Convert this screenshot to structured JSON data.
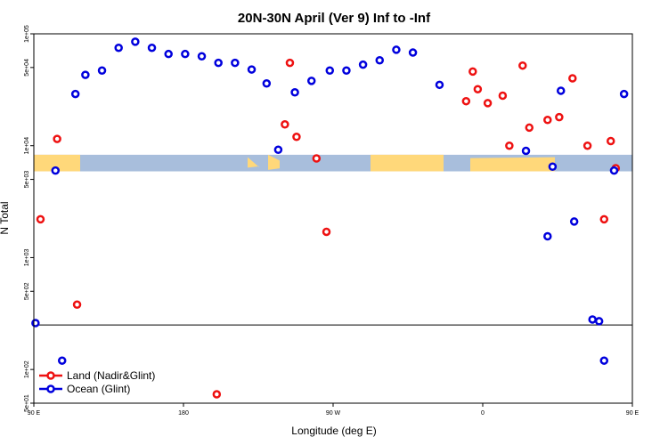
{
  "chart_data": {
    "type": "scatter",
    "title": "20N-30N April (Ver 9)   Inf to -Inf",
    "xlabel": "Longitude (deg E)",
    "ylabel": "N Total",
    "x_range_deg": [
      90,
      450
    ],
    "y_scale": "log",
    "ylim": [
      50,
      100000
    ],
    "x_ticks": [
      {
        "value": 90,
        "label": "90 E"
      },
      {
        "value": 180,
        "label": "180"
      },
      {
        "value": 270,
        "label": "90 W"
      },
      {
        "value": 360,
        "label": "0"
      },
      {
        "value": 450,
        "label": "90 E"
      },
      {
        "value": 540,
        "label": "180"
      }
    ],
    "y_ticks": [
      {
        "value": 50,
        "label": "5e+01"
      },
      {
        "value": 100,
        "label": "1e+02"
      },
      {
        "value": 500,
        "label": "5e+02"
      },
      {
        "value": 1000,
        "label": "1e+03"
      },
      {
        "value": 5000,
        "label": "5e+03"
      },
      {
        "value": 10000,
        "label": "1e+04"
      },
      {
        "value": 50000,
        "label": "5e+04"
      },
      {
        "value": 100000,
        "label": "1e+05"
      }
    ],
    "reference_line_y": 250,
    "map_band": {
      "y_top": 8300,
      "y_bottom": 5900,
      "land_color": "#FFD87A",
      "ocean_color": "#A8BEDC"
    },
    "legend_position": "bottom-left",
    "series": [
      {
        "name": "Land (Nadir&Glint)",
        "color": "#EE1111",
        "points": [
          [
            94,
            2200
          ],
          [
            104,
            11500
          ],
          [
            116,
            380
          ],
          [
            200,
            60
          ],
          [
            241,
            15500
          ],
          [
            244,
            55000
          ],
          [
            248,
            12000
          ],
          [
            260,
            7700
          ],
          [
            266,
            1700
          ],
          [
            357,
            32000
          ],
          [
            350,
            25000
          ],
          [
            354,
            46000
          ],
          [
            363,
            24000
          ],
          [
            372,
            28000
          ],
          [
            376,
            10000
          ],
          [
            384,
            52000
          ],
          [
            388,
            14500
          ],
          [
            399,
            17000
          ],
          [
            406,
            18000
          ],
          [
            414,
            40000
          ],
          [
            423,
            10000
          ],
          [
            433,
            2200
          ],
          [
            437,
            11000
          ],
          [
            440,
            6300
          ],
          [
            452,
            380
          ]
        ]
      },
      {
        "name": "Ocean (Glint)",
        "color": "#0000DD",
        "points": [
          [
            91,
            260
          ],
          [
            103,
            6000
          ],
          [
            107,
            120
          ],
          [
            115,
            29000
          ],
          [
            121,
            43000
          ],
          [
            131,
            47000
          ],
          [
            141,
            75000
          ],
          [
            151,
            85000
          ],
          [
            161,
            75000
          ],
          [
            171,
            66000
          ],
          [
            181,
            66000
          ],
          [
            191,
            63000
          ],
          [
            201,
            55000
          ],
          [
            211,
            55000
          ],
          [
            221,
            48000
          ],
          [
            230,
            36000
          ],
          [
            237,
            9200
          ],
          [
            247,
            30000
          ],
          [
            257,
            38000
          ],
          [
            268,
            47000
          ],
          [
            278,
            47000
          ],
          [
            288,
            53000
          ],
          [
            298,
            58000
          ],
          [
            308,
            72000
          ],
          [
            318,
            68000
          ],
          [
            334,
            35000
          ],
          [
            386,
            9000
          ],
          [
            399,
            1550
          ],
          [
            402,
            6500
          ],
          [
            407,
            31000
          ],
          [
            415,
            2100
          ],
          [
            426,
            280
          ],
          [
            430,
            270
          ],
          [
            433,
            120
          ],
          [
            439,
            6000
          ],
          [
            445,
            29000
          ],
          [
            455,
            43000
          ],
          [
            465,
            47000
          ],
          [
            475,
            75000
          ],
          [
            485,
            85000
          ],
          [
            495,
            75000
          ]
        ]
      }
    ]
  }
}
